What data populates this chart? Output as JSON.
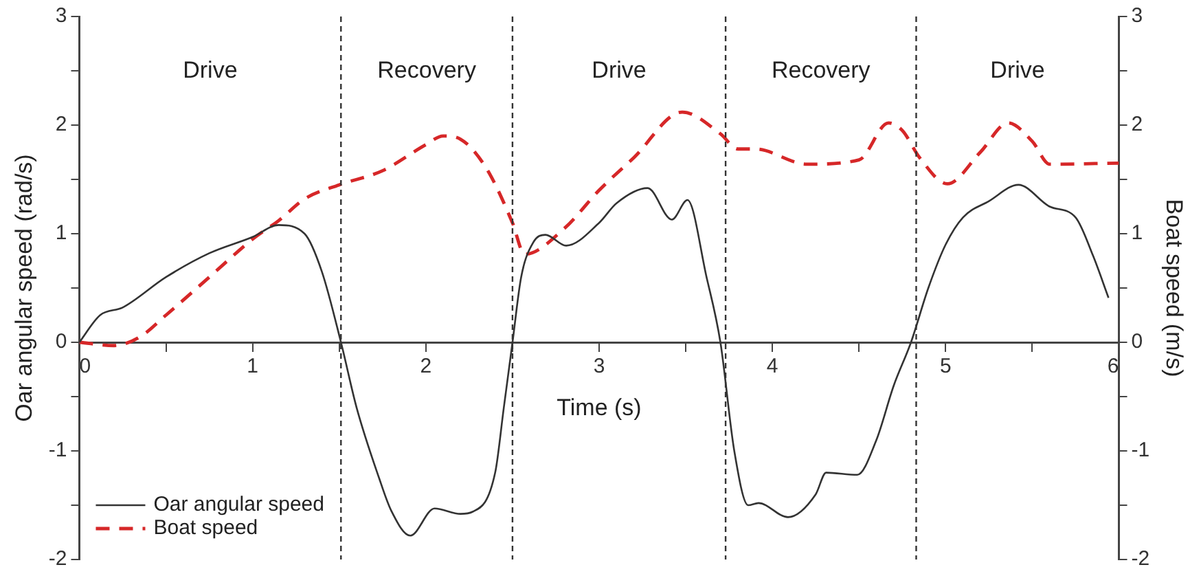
{
  "chart_data": {
    "type": "line",
    "xlabel": "Time (s)",
    "ylabel": "Oar angular speed (rad/s)",
    "y2label": "Boat speed (m/s)",
    "xlim": [
      0,
      6
    ],
    "xticks": [
      0,
      {
        "value": 0.5,
        "label": null
      },
      1,
      {
        "value": 1.5,
        "label": null
      },
      2,
      {
        "value": 2.5,
        "label": null
      },
      3,
      {
        "value": 3.5,
        "label": null
      },
      4,
      {
        "value": 4.5,
        "label": null
      },
      5,
      {
        "value": 5.5,
        "label": null
      },
      6
    ],
    "ylim": [
      -2,
      3
    ],
    "yticks": [
      -2,
      {
        "value": -1.5,
        "label": null
      },
      -1,
      {
        "value": -0.5,
        "label": null
      },
      0,
      {
        "value": 0.5,
        "label": null
      },
      1,
      {
        "value": 1.5,
        "label": null
      },
      2,
      {
        "value": 2.5,
        "label": null
      },
      3
    ],
    "y2lim": [
      -2,
      3
    ],
    "y2ticks": [
      -2,
      {
        "value": -1.5,
        "label": null
      },
      -1,
      {
        "value": -0.5,
        "label": null
      },
      0,
      {
        "value": 0.5,
        "label": null
      },
      1,
      {
        "value": 1.5,
        "label": null
      },
      2,
      {
        "value": 2.5,
        "label": null
      },
      3
    ],
    "grid": false,
    "legend": "bottom left",
    "marker": "none",
    "series": [
      {
        "name": "Oar angular speed",
        "color": "#333333",
        "line_style": "solid",
        "x": [
          0,
          0.12,
          0.25,
          0.5,
          0.75,
          1.0,
          1.15,
          1.3,
          1.4,
          1.51,
          1.6,
          1.73,
          1.8,
          1.91,
          2.05,
          2.2,
          2.27,
          2.4,
          2.45,
          2.5,
          2.55,
          2.62,
          2.69,
          2.81,
          3.0,
          3.1,
          3.28,
          3.42,
          3.51,
          3.62,
          3.7,
          3.78,
          3.86,
          3.92,
          4.09,
          4.25,
          4.31,
          4.49,
          4.6,
          4.7,
          4.8,
          4.9,
          5.0,
          5.1,
          5.25,
          5.42,
          5.6,
          5.75,
          5.85,
          5.94
        ],
        "values": [
          0,
          0.25,
          0.32,
          0.6,
          0.82,
          0.97,
          1.08,
          1.0,
          0.65,
          0,
          -0.6,
          -1.25,
          -1.55,
          -1.78,
          -1.53,
          -1.58,
          -1.56,
          -1.2,
          -0.6,
          0,
          0.6,
          0.92,
          0.99,
          0.89,
          1.1,
          1.28,
          1.42,
          1.13,
          1.31,
          0.6,
          0,
          -1.0,
          -1.5,
          -1.48,
          -1.61,
          -1.4,
          -1.2,
          -1.22,
          -0.9,
          -0.4,
          0,
          0.5,
          0.9,
          1.15,
          1.3,
          1.45,
          1.25,
          1.15,
          0.8,
          0.41
        ]
      },
      {
        "name": "Boat speed",
        "color": "#d62728",
        "line_style": "dashed",
        "axis": "y2",
        "x": [
          0,
          0.2,
          0.35,
          0.5,
          0.75,
          1.0,
          1.15,
          1.3,
          1.5,
          1.75,
          2.0,
          2.1,
          2.2,
          2.35,
          2.5,
          2.57,
          2.8,
          3.0,
          3.2,
          3.48,
          3.7,
          3.8,
          3.9,
          4.2,
          4.5,
          4.67,
          4.75,
          4.85,
          5.01,
          5.2,
          5.36,
          5.5,
          5.6,
          6.0
        ],
        "values": [
          0,
          -0.03,
          0.05,
          0.25,
          0.6,
          0.95,
          1.12,
          1.32,
          1.45,
          1.58,
          1.82,
          1.9,
          1.87,
          1.6,
          1.1,
          0.81,
          1.05,
          1.4,
          1.7,
          2.12,
          1.92,
          1.78,
          1.78,
          1.64,
          1.68,
          2.02,
          1.95,
          1.7,
          1.46,
          1.75,
          2.02,
          1.85,
          1.64,
          1.65
        ]
      }
    ],
    "ref_lines": [
      {
        "axis": "x",
        "value": 1.51,
        "line_style": "dashed",
        "color": "#333333"
      },
      {
        "axis": "x",
        "value": 2.5,
        "line_style": "dashed",
        "color": "#333333"
      },
      {
        "axis": "x",
        "value": 3.73,
        "line_style": "dashed",
        "color": "#333333"
      },
      {
        "axis": "x",
        "value": 4.83,
        "line_style": "dashed",
        "color": "#333333"
      }
    ],
    "annotations": [
      "Drive",
      "Recovery",
      "Drive",
      "Recovery",
      "Drive"
    ]
  }
}
